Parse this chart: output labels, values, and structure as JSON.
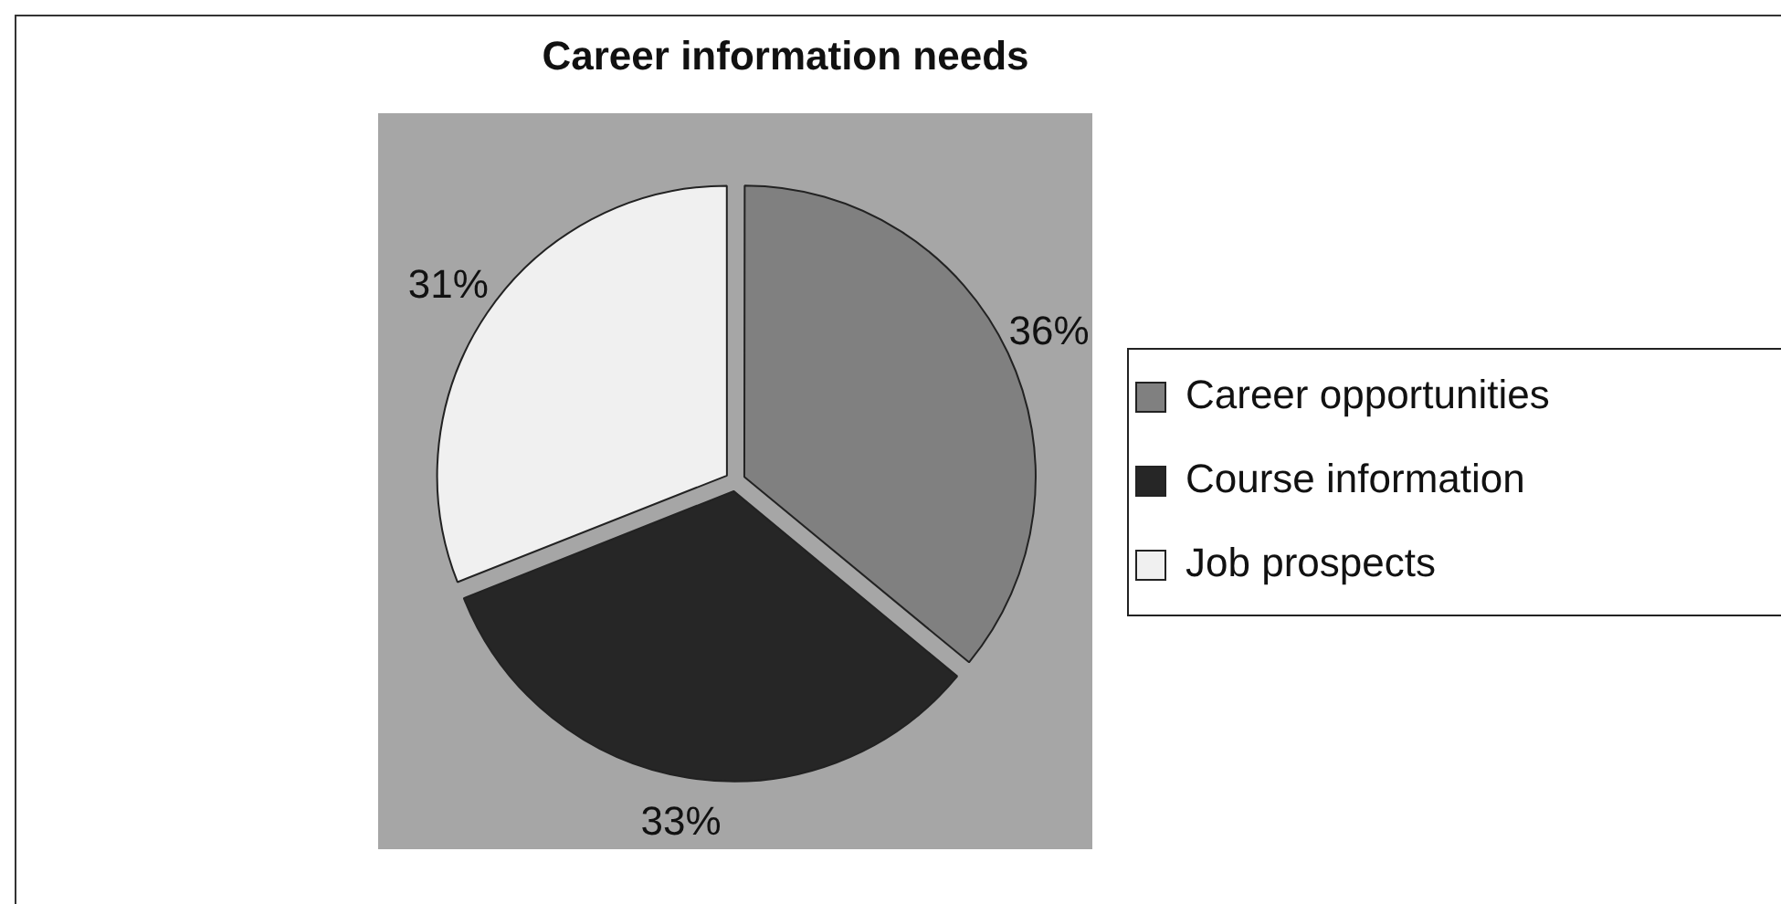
{
  "chart_data": {
    "type": "pie",
    "title": "Career information needs",
    "categories": [
      "Career opportunities",
      "Course information",
      "Job prospects"
    ],
    "values": [
      36,
      33,
      31
    ],
    "value_labels": [
      "36%",
      "33%",
      "31%"
    ],
    "colors": [
      "#808080",
      "#262626",
      "#f0f0f0"
    ],
    "legend": "right"
  }
}
